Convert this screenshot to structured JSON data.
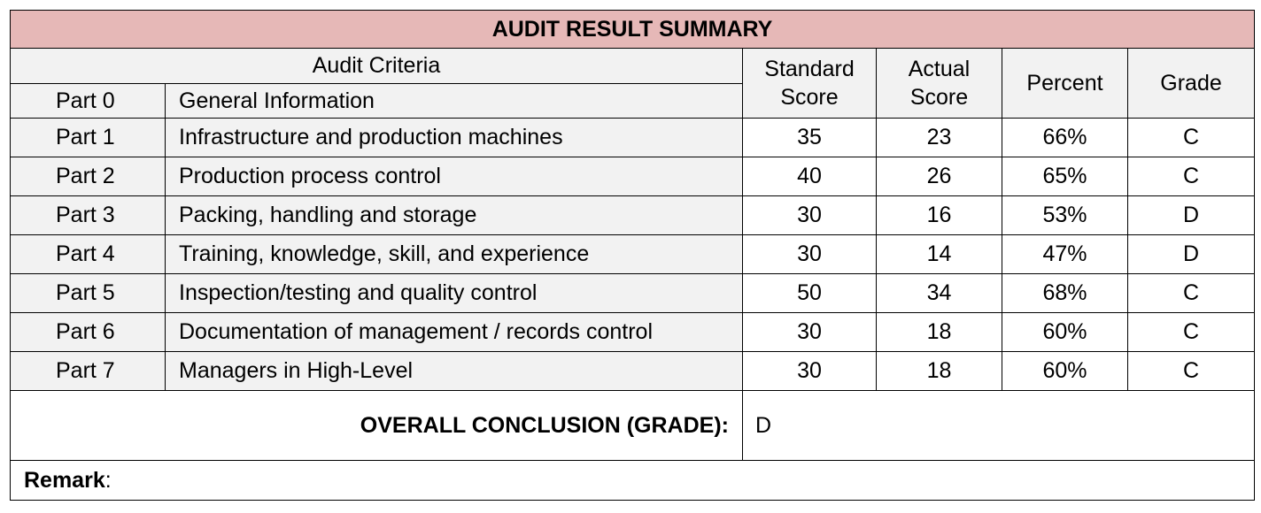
{
  "title": "AUDIT RESULT SUMMARY",
  "headers": {
    "audit_criteria": "Audit Criteria",
    "standard_score_1": "Standard",
    "standard_score_2": "Score",
    "actual_score_1": "Actual",
    "actual_score_2": "Score",
    "percent": "Percent",
    "grade": "Grade"
  },
  "part0": {
    "part": "Part 0",
    "description": "General Information"
  },
  "rows": [
    {
      "part": "Part 1",
      "description": "Infrastructure and production machines",
      "standard": "35",
      "actual": "23",
      "percent": "66%",
      "grade": "C"
    },
    {
      "part": "Part 2",
      "description": "Production process control",
      "standard": "40",
      "actual": "26",
      "percent": "65%",
      "grade": "C"
    },
    {
      "part": "Part 3",
      "description": "Packing, handling and storage",
      "standard": "30",
      "actual": "16",
      "percent": "53%",
      "grade": "D"
    },
    {
      "part": "Part 4",
      "description": "Training, knowledge, skill, and experience",
      "standard": "30",
      "actual": "14",
      "percent": "47%",
      "grade": "D"
    },
    {
      "part": "Part 5",
      "description": "Inspection/testing and quality control",
      "standard": "50",
      "actual": "34",
      "percent": "68%",
      "grade": "C"
    },
    {
      "part": "Part 6",
      "description": "Documentation of management / records control",
      "standard": "30",
      "actual": "18",
      "percent": "60%",
      "grade": "C"
    },
    {
      "part": "Part 7",
      "description": "Managers in High-Level",
      "standard": "30",
      "actual": "18",
      "percent": "60%",
      "grade": "C"
    }
  ],
  "conclusion": {
    "label": "OVERALL CONCLUSION (GRADE):",
    "value": "D"
  },
  "remark": {
    "label": "Remark",
    "separator": ":"
  },
  "colors": {
    "title_background": "#e6b8b7",
    "grey_background": "#f2f2f2",
    "border": "#000000"
  }
}
